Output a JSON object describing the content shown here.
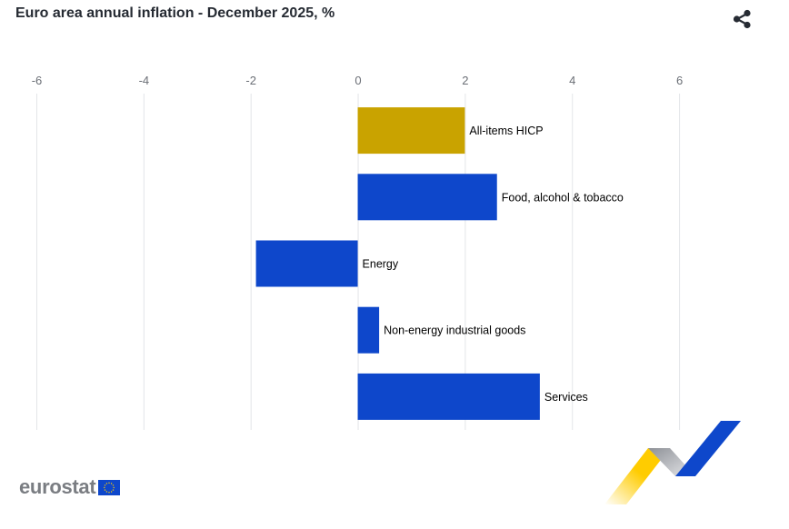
{
  "header": {
    "title": "Euro area annual inflation - December 2025, %",
    "share_icon": "share-icon"
  },
  "logo": {
    "text": "eurostat",
    "flag_icon": "eu-flag-icon"
  },
  "colors": {
    "highlight": "#c9a300",
    "bar": "#0e47cb",
    "grid": "#e3e5e8",
    "ribbon_yellow": "#ffcc00",
    "ribbon_blue": "#0e47cb",
    "ribbon_grey": "#b9bcc2"
  },
  "chart_data": {
    "type": "bar",
    "orientation": "horizontal",
    "title": "Euro area annual inflation - December 2025, %",
    "categories": [
      "All-items HICP",
      "Food, alcohol & tobacco",
      "Energy",
      "Non-energy industrial goods",
      "Services"
    ],
    "values": [
      2.0,
      2.6,
      -1.9,
      0.4,
      3.4
    ],
    "highlighted": [
      "All-items HICP"
    ],
    "xlim": [
      -6,
      7
    ],
    "xticks": [
      -6,
      -4,
      -2,
      0,
      2,
      4,
      6
    ],
    "xlabel": "",
    "ylabel": "",
    "grid": true
  }
}
